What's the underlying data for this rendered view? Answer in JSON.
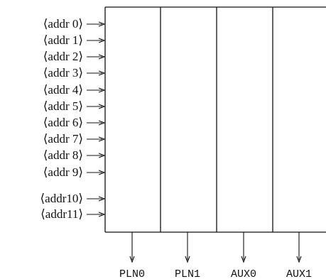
{
  "inputs": [
    {
      "label": "⟨addr 0⟩"
    },
    {
      "label": "⟨addr 1⟩"
    },
    {
      "label": "⟨addr 2⟩"
    },
    {
      "label": "⟨addr 3⟩"
    },
    {
      "label": "⟨addr 4⟩"
    },
    {
      "label": "⟨addr 5⟩"
    },
    {
      "label": "⟨addr 6⟩"
    },
    {
      "label": "⟨addr 7⟩"
    },
    {
      "label": "⟨addr 8⟩"
    },
    {
      "label": "⟨addr 9⟩"
    },
    {
      "label": "⟨addr10⟩"
    },
    {
      "label": "⟨addr11⟩"
    }
  ],
  "outputs": [
    {
      "label": "PLN0"
    },
    {
      "label": "PLN1"
    },
    {
      "label": "AUX0"
    },
    {
      "label": "AUX1"
    }
  ],
  "colors": {
    "line": "#111111"
  }
}
